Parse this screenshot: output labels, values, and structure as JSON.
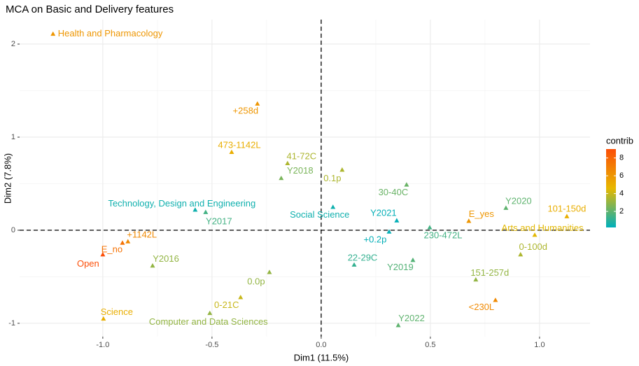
{
  "chart_data": {
    "type": "scatter",
    "title": "MCA on Basic and Delivery features",
    "xlabel": "Dim1 (11.5%)",
    "ylabel": "Dim2 (7.8%)",
    "labels": [
      "Health and Pharmacology",
      "+258d",
      "473-1142L",
      "41-72C",
      "Y2018",
      "0.1p",
      "30-40C",
      "Technology, Design and Engineering",
      "Y2017",
      "Social Science",
      "Y2021",
      "E_yes",
      "Y2020",
      "101-150d",
      "Arts and Humanities",
      "230-472L",
      "+0.2p",
      "0-100d",
      "+1142L",
      "E_no",
      "Open",
      "Y2016",
      "22-29C",
      "Y2019",
      "0.0p",
      "151-257d",
      "<230L",
      "0-21C",
      "Computer and Data Sciences",
      "Science",
      "Y2022"
    ],
    "x": [
      -1.228,
      -0.292,
      -0.41,
      -0.154,
      -0.183,
      0.096,
      0.391,
      -0.577,
      -0.529,
      0.054,
      0.346,
      0.676,
      0.846,
      1.125,
      0.978,
      0.497,
      0.311,
      0.913,
      -0.885,
      -0.91,
      -1.0,
      -0.772,
      0.151,
      0.42,
      -0.237,
      0.708,
      0.798,
      -0.369,
      -0.51,
      -0.997,
      0.353
    ],
    "y": [
      2.11,
      1.36,
      0.84,
      0.72,
      0.56,
      0.65,
      0.49,
      0.22,
      0.195,
      0.25,
      0.105,
      0.1,
      0.24,
      0.15,
      -0.05,
      0.03,
      -0.015,
      -0.26,
      -0.12,
      -0.135,
      -0.26,
      -0.38,
      -0.37,
      -0.32,
      -0.45,
      -0.53,
      -0.75,
      -0.72,
      -0.89,
      -0.95,
      -1.02
    ],
    "contrib": [
      6,
      6,
      5,
      3.5,
      2.5,
      3.5,
      2.2,
      0.5,
      1.5,
      0.5,
      0.3,
      6,
      2,
      5,
      4.5,
      1.5,
      0.3,
      3.5,
      6.5,
      7.5,
      9,
      3,
      1.2,
      1.8,
      3,
      3,
      6.5,
      4,
      3,
      5,
      2
    ],
    "xlim": [
      -1.381,
      1.231
    ],
    "ylim": [
      -1.143,
      2.263
    ],
    "xticks": [
      {
        "value": -1,
        "label": "-1.0"
      },
      -0.5,
      {
        "value": 0,
        "label": "0.0"
      },
      0.5,
      {
        "value": 1,
        "label": "1.0"
      }
    ],
    "yticks": [
      -1,
      0,
      1,
      2
    ],
    "hline": 0,
    "vline": 0,
    "grid": true,
    "legend": {
      "title": "contrib",
      "lim": [
        0.2,
        9
      ],
      "ticks": [
        2,
        4,
        6,
        8
      ],
      "colors": [
        "#00AFBB",
        "#E7B800",
        "#FC4E07"
      ]
    }
  }
}
